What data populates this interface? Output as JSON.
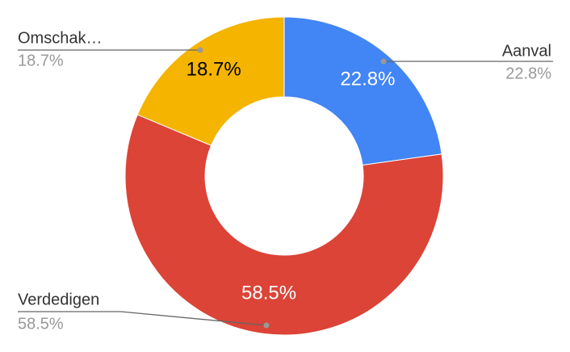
{
  "chart_data": {
    "type": "pie",
    "categories": [
      "Aanval",
      "Verdedigen",
      "Omschak…"
    ],
    "values": [
      22.8,
      58.5,
      18.7
    ],
    "value_labels": [
      "22.8%",
      "58.5%",
      "18.7%"
    ],
    "colors": [
      "#4285f4",
      "#db4437",
      "#f4b400"
    ]
  }
}
